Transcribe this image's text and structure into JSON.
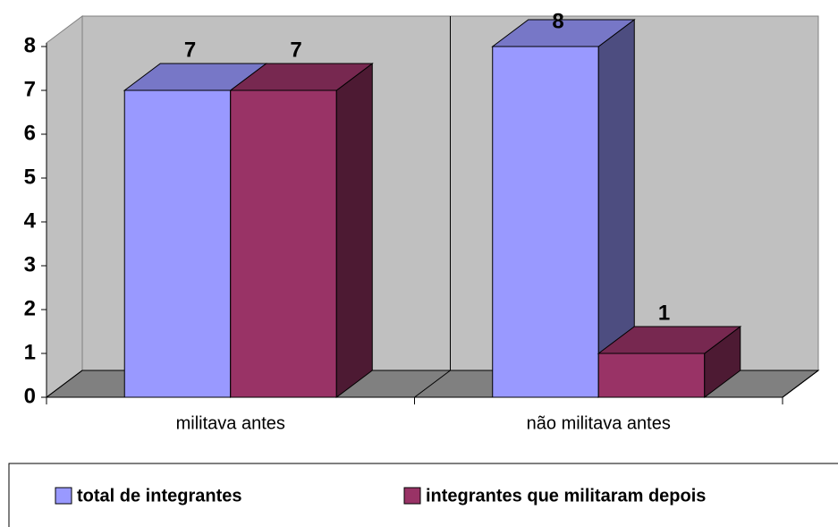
{
  "chart_data": {
    "type": "bar3d",
    "categories": [
      "militava antes",
      "não militava antes"
    ],
    "series": [
      {
        "name": "total de integrantes",
        "color": "#9999ff",
        "values": [
          7,
          8
        ]
      },
      {
        "name": "integrantes que militaram depois",
        "color": "#993366",
        "values": [
          7,
          1
        ]
      }
    ],
    "ylim": [
      0,
      8
    ],
    "yticks": [
      0,
      1,
      2,
      3,
      4,
      5,
      6,
      7,
      8
    ],
    "data_labels": true,
    "legend": "bottom"
  }
}
